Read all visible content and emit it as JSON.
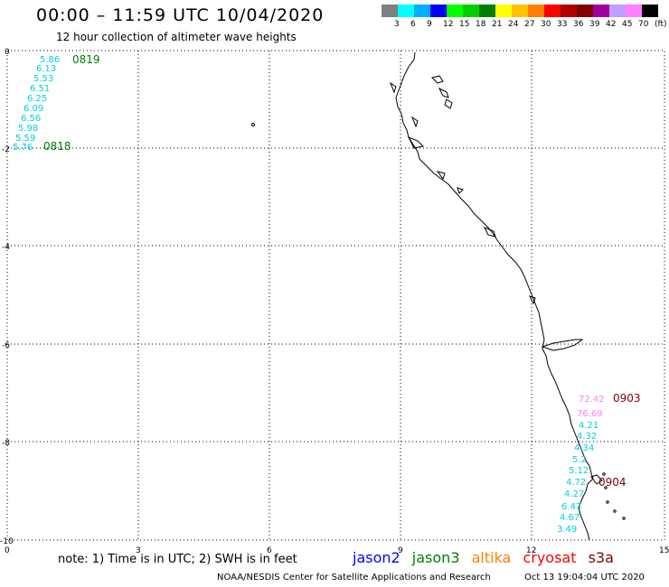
{
  "header": {
    "title": "00:00 – 11:59 UTC 10/04/2020",
    "subtitle": "12 hour collection of altimeter wave heights"
  },
  "legend": {
    "colors": [
      "#808080",
      "#00ffff",
      "#00b0ff",
      "#0000ff",
      "#00ff00",
      "#00d000",
      "#008000",
      "#ffff00",
      "#ffc000",
      "#ff8000",
      "#ff0000",
      "#b00000",
      "#800000",
      "#a000a0",
      "#c0a0ff",
      "#ff80ff",
      "#000000"
    ],
    "labels": [
      "3",
      "6",
      "9",
      "12",
      "15",
      "18",
      "21",
      "24",
      "27",
      "30",
      "33",
      "36",
      "39",
      "42",
      "45",
      "70",
      "(ft)"
    ]
  },
  "axes": {
    "x_ticks": [
      "0",
      "3",
      "6",
      "9",
      "12",
      "15"
    ],
    "y_ticks": [
      "0",
      "-2",
      "-4",
      "-6",
      "-8",
      "-10"
    ]
  },
  "tracks": [
    {
      "id": "0819",
      "color": "#008000",
      "label": "0819",
      "values": [
        {
          "text": "5.86",
          "color": "#00d0e0"
        },
        {
          "text": "6.13",
          "color": "#00d0e0"
        },
        {
          "text": "5.53",
          "color": "#00d0e0"
        },
        {
          "text": "6.51",
          "color": "#00d0e0"
        },
        {
          "text": "6.25",
          "color": "#00d0e0"
        },
        {
          "text": "6.09",
          "color": "#00d0e0"
        },
        {
          "text": "6.56",
          "color": "#00d0e0"
        },
        {
          "text": "5.98",
          "color": "#00d0e0"
        },
        {
          "text": "5.59",
          "color": "#00d0e0"
        },
        {
          "text": "5.76",
          "color": "#00d0e0"
        }
      ]
    },
    {
      "id": "0818",
      "color": "#008000",
      "label": "0818"
    },
    {
      "id": "0903",
      "color": "#800000",
      "label": "0903",
      "values": [
        {
          "text": "72.42",
          "color": "#ff80ff"
        },
        {
          "text": "76.69",
          "color": "#ff80ff"
        },
        {
          "text": "4.21",
          "color": "#00d0e0"
        },
        {
          "text": "4.32",
          "color": "#00d0e0"
        },
        {
          "text": "4.34",
          "color": "#00d0e0"
        },
        {
          "text": "5.2",
          "color": "#00d0e0"
        },
        {
          "text": "5.12",
          "color": "#00d0e0"
        },
        {
          "text": "4.72",
          "color": "#00d0e0"
        },
        {
          "text": "4.27",
          "color": "#00d0e0"
        },
        {
          "text": "6.43",
          "color": "#00d0e0"
        },
        {
          "text": "4.67",
          "color": "#00d0e0"
        },
        {
          "text": "3.49",
          "color": "#00d0e0"
        }
      ]
    },
    {
      "id": "0904",
      "color": "#800000",
      "label": "0904"
    }
  ],
  "footer": {
    "note": "note:  1) Time is in UTC;  2) SWH is in feet",
    "satellites": [
      {
        "name": "jason2",
        "color": "#0000ff"
      },
      {
        "name": "jason3",
        "color": "#008000"
      },
      {
        "name": "altika",
        "color": "#ff8000"
      },
      {
        "name": "cryosat",
        "color": "#ff0000"
      },
      {
        "name": "s3a",
        "color": "#800000"
      }
    ],
    "credit": "NOAA/NESDIS Center for Satellite Applications and Research",
    "timestamp": "Oct 13 19:04:04 UTC 2020"
  }
}
